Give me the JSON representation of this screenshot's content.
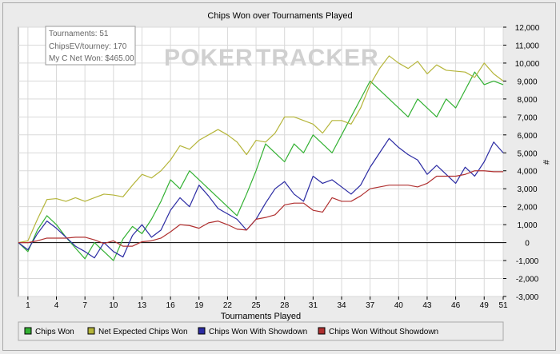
{
  "stats": {
    "tournaments": "Tournaments: 51",
    "chips_ev": "ChipsEV/tourney: 170",
    "net_won": "My C Net Won: $465.00"
  },
  "watermark": {
    "part1": "POKER",
    "part2": "TRACKER"
  },
  "colors": {
    "chips_won": "#33b133",
    "net_expected": "#b5b53a",
    "with_showdown": "#2b2ba3",
    "without_showdown": "#b03030"
  },
  "chart_data": {
    "type": "line",
    "title": "Chips Won over Tournaments Played",
    "xlabel": "Tournaments Played",
    "ylabel": "#",
    "xlim": [
      0,
      51
    ],
    "ylim": [
      -3000,
      12000
    ],
    "xticks": [
      1,
      4,
      7,
      10,
      13,
      16,
      19,
      22,
      25,
      28,
      31,
      34,
      37,
      40,
      43,
      46,
      49,
      51
    ],
    "yticks": [
      -3000,
      -2000,
      -1000,
      0,
      1000,
      2000,
      3000,
      4000,
      5000,
      6000,
      7000,
      8000,
      9000,
      10000,
      11000,
      12000
    ],
    "ytick_labels": [
      "-3,000",
      "-2,000",
      "-1,000",
      "0",
      "1,000",
      "2,000",
      "3,000",
      "4,000",
      "5,000",
      "6,000",
      "7,000",
      "8,000",
      "9,000",
      "10,000",
      "11,000",
      "12,000"
    ],
    "legend_position": "bottom",
    "grid": true,
    "x": [
      0,
      1,
      2,
      3,
      4,
      5,
      6,
      7,
      8,
      9,
      10,
      11,
      12,
      13,
      14,
      15,
      16,
      17,
      18,
      19,
      20,
      21,
      22,
      23,
      24,
      25,
      26,
      27,
      28,
      29,
      30,
      31,
      32,
      33,
      34,
      35,
      36,
      37,
      38,
      39,
      40,
      41,
      42,
      43,
      44,
      45,
      46,
      47,
      48,
      49,
      50,
      51
    ],
    "series": [
      {
        "name": "Chips Won",
        "values": [
          0,
          -500,
          700,
          1500,
          1000,
          300,
          -300,
          -900,
          0,
          -500,
          -1000,
          200,
          900,
          500,
          1300,
          2300,
          3500,
          3000,
          4000,
          3500,
          3000,
          2500,
          2000,
          1500,
          2700,
          4000,
          5500,
          5000,
          4500,
          5500,
          5000,
          6000,
          5500,
          5000,
          6000,
          7000,
          8000,
          9000,
          8500,
          8000,
          7500,
          7000,
          8000,
          7500,
          7000,
          8000,
          7500,
          8500,
          9500,
          8800,
          9000,
          8800
        ]
      },
      {
        "name": "Net Expected Chips Won",
        "values": [
          0,
          100,
          1300,
          2400,
          2450,
          2300,
          2500,
          2300,
          2500,
          2700,
          2650,
          2550,
          3200,
          3800,
          3600,
          4000,
          4600,
          5400,
          5200,
          5700,
          6000,
          6300,
          6000,
          5600,
          4900,
          5700,
          5600,
          6100,
          7000,
          7000,
          6800,
          6600,
          6100,
          6800,
          6800,
          6600,
          7500,
          8800,
          9700,
          10400,
          10000,
          9700,
          10100,
          9400,
          9900,
          9600,
          9550,
          9500,
          9200,
          10000,
          9400,
          9000
        ]
      },
      {
        "name": "Chips Won With Showdown",
        "values": [
          0,
          -400,
          500,
          1200,
          800,
          300,
          -200,
          -500,
          -850,
          0,
          -500,
          -800,
          400,
          1000,
          300,
          700,
          1800,
          2500,
          2000,
          3200,
          2600,
          1900,
          1600,
          1300,
          700,
          1300,
          2200,
          3000,
          3400,
          2700,
          2300,
          3700,
          3300,
          3500,
          3100,
          2700,
          3200,
          4200,
          5000,
          5800,
          5300,
          4900,
          4600,
          3800,
          4300,
          3800,
          3300,
          4200,
          3700,
          4500,
          5600,
          5000
        ]
      },
      {
        "name": "Chips Won Without Showdown",
        "values": [
          0,
          0,
          100,
          250,
          250,
          250,
          300,
          300,
          150,
          -50,
          100,
          -200,
          -200,
          50,
          100,
          250,
          600,
          1000,
          950,
          800,
          1100,
          1200,
          1000,
          750,
          700,
          1300,
          1400,
          1550,
          2100,
          2200,
          2200,
          1800,
          1700,
          2500,
          2300,
          2300,
          2600,
          3000,
          3100,
          3200,
          3200,
          3200,
          3100,
          3300,
          3700,
          3700,
          3700,
          3800,
          4000,
          4000,
          3950,
          3950
        ]
      }
    ]
  }
}
